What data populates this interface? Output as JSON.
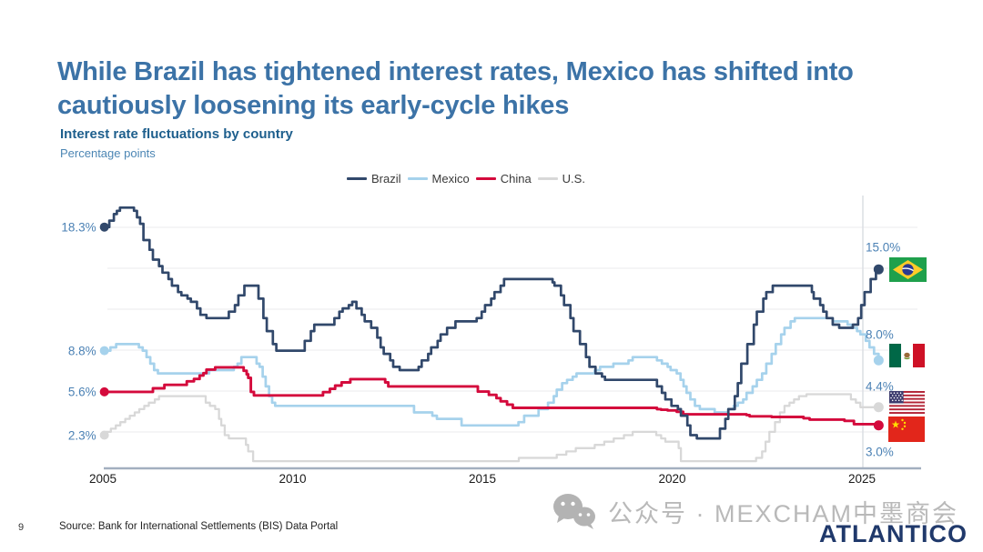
{
  "slide": {
    "title_line1": "While Brazil has tightened interest rates, Mexico has shifted into",
    "title_line2": "cautiously loosening its early-cycle hikes",
    "page_number": "9",
    "source": "Source: Bank for International Settlements (BIS) Data Portal",
    "watermark_text": "公众号 · MEXCHAM中墨商会",
    "logo_text": "ATLANTICO"
  },
  "chart": {
    "title": "Interest rate fluctuations by country",
    "units": "Percentage points"
  },
  "chart_data": {
    "type": "line",
    "title": "Interest rate fluctuations by country",
    "ylabel": "Percentage points",
    "x_tick_labels": [
      "2005",
      "2010",
      "2015",
      "2020",
      "2025"
    ],
    "x_ticks": [
      2005,
      2010,
      2015,
      2020,
      2025
    ],
    "x_range": [
      2005.0,
      2025.44
    ],
    "ylim": [
      0,
      20
    ],
    "grid": "horizontal unlabeled gridlines, vertical highlight line at 2025",
    "legend_position": "top-center",
    "value_label_color": "#4C82B5",
    "series": [
      {
        "name": "Brazil",
        "color": "#31486B",
        "start_label": "18.3%",
        "end_label": "15.0%",
        "flag": "brazil-flag",
        "points": [
          [
            2005.04,
            18.25
          ],
          [
            2005.17,
            18.75
          ],
          [
            2005.29,
            19.25
          ],
          [
            2005.37,
            19.5
          ],
          [
            2005.45,
            19.75
          ],
          [
            2005.82,
            19.5
          ],
          [
            2005.9,
            19.0
          ],
          [
            2005.98,
            18.5
          ],
          [
            2006.07,
            17.25
          ],
          [
            2006.23,
            16.5
          ],
          [
            2006.32,
            15.75
          ],
          [
            2006.48,
            15.25
          ],
          [
            2006.57,
            14.75
          ],
          [
            2006.73,
            14.25
          ],
          [
            2006.82,
            13.75
          ],
          [
            2006.98,
            13.25
          ],
          [
            2007.07,
            13.0
          ],
          [
            2007.23,
            12.75
          ],
          [
            2007.32,
            12.5
          ],
          [
            2007.48,
            12.0
          ],
          [
            2007.57,
            11.5
          ],
          [
            2007.73,
            11.25
          ],
          [
            2008.32,
            11.75
          ],
          [
            2008.48,
            12.25
          ],
          [
            2008.57,
            13.0
          ],
          [
            2008.73,
            13.75
          ],
          [
            2009.1,
            12.75
          ],
          [
            2009.23,
            11.25
          ],
          [
            2009.32,
            10.25
          ],
          [
            2009.48,
            9.25
          ],
          [
            2009.57,
            8.75
          ],
          [
            2010.32,
            9.5
          ],
          [
            2010.48,
            10.25
          ],
          [
            2010.57,
            10.75
          ],
          [
            2011.1,
            11.25
          ],
          [
            2011.23,
            11.75
          ],
          [
            2011.32,
            12.0
          ],
          [
            2011.48,
            12.25
          ],
          [
            2011.57,
            12.5
          ],
          [
            2011.68,
            12.0
          ],
          [
            2011.82,
            11.5
          ],
          [
            2011.9,
            11.0
          ],
          [
            2012.07,
            10.5
          ],
          [
            2012.23,
            9.75
          ],
          [
            2012.32,
            9.0
          ],
          [
            2012.4,
            8.5
          ],
          [
            2012.57,
            8.0
          ],
          [
            2012.65,
            7.5
          ],
          [
            2012.82,
            7.25
          ],
          [
            2013.32,
            7.5
          ],
          [
            2013.4,
            8.0
          ],
          [
            2013.57,
            8.5
          ],
          [
            2013.65,
            9.0
          ],
          [
            2013.82,
            9.5
          ],
          [
            2013.9,
            10.0
          ],
          [
            2014.07,
            10.5
          ],
          [
            2014.29,
            11.0
          ],
          [
            2014.85,
            11.25
          ],
          [
            2014.98,
            11.75
          ],
          [
            2015.07,
            12.25
          ],
          [
            2015.23,
            12.75
          ],
          [
            2015.32,
            13.25
          ],
          [
            2015.48,
            13.75
          ],
          [
            2015.57,
            14.25
          ],
          [
            2016.85,
            14.0
          ],
          [
            2016.9,
            13.75
          ],
          [
            2017.07,
            13.0
          ],
          [
            2017.15,
            12.25
          ],
          [
            2017.32,
            11.25
          ],
          [
            2017.4,
            10.25
          ],
          [
            2017.57,
            9.25
          ],
          [
            2017.73,
            8.25
          ],
          [
            2017.82,
            7.5
          ],
          [
            2017.98,
            7.0
          ],
          [
            2018.15,
            6.75
          ],
          [
            2018.23,
            6.5
          ],
          [
            2019.6,
            6.0
          ],
          [
            2019.73,
            5.5
          ],
          [
            2019.82,
            5.0
          ],
          [
            2019.98,
            4.5
          ],
          [
            2020.15,
            4.25
          ],
          [
            2020.23,
            3.75
          ],
          [
            2020.4,
            3.0
          ],
          [
            2020.48,
            2.25
          ],
          [
            2020.65,
            2.0
          ],
          [
            2021.26,
            2.75
          ],
          [
            2021.4,
            3.5
          ],
          [
            2021.48,
            4.25
          ],
          [
            2021.65,
            5.25
          ],
          [
            2021.73,
            6.25
          ],
          [
            2021.82,
            7.75
          ],
          [
            2021.98,
            9.25
          ],
          [
            2022.15,
            10.75
          ],
          [
            2022.23,
            11.75
          ],
          [
            2022.4,
            12.75
          ],
          [
            2022.48,
            13.25
          ],
          [
            2022.65,
            13.75
          ],
          [
            2023.68,
            13.25
          ],
          [
            2023.73,
            12.75
          ],
          [
            2023.9,
            12.25
          ],
          [
            2023.98,
            11.75
          ],
          [
            2024.07,
            11.25
          ],
          [
            2024.23,
            10.75
          ],
          [
            2024.4,
            10.5
          ],
          [
            2024.76,
            10.75
          ],
          [
            2024.9,
            11.25
          ],
          [
            2024.98,
            12.25
          ],
          [
            2025.07,
            13.25
          ],
          [
            2025.23,
            14.25
          ],
          [
            2025.37,
            14.75
          ],
          [
            2025.44,
            15.0
          ]
        ]
      },
      {
        "name": "Mexico",
        "color": "#A6D2EC",
        "start_label": "8.8%",
        "end_label": "8.0%",
        "flag": "mexico-flag",
        "points": [
          [
            2005.04,
            8.75
          ],
          [
            2005.2,
            9.0
          ],
          [
            2005.35,
            9.25
          ],
          [
            2005.95,
            9.0
          ],
          [
            2006.05,
            8.75
          ],
          [
            2006.15,
            8.25
          ],
          [
            2006.25,
            7.75
          ],
          [
            2006.35,
            7.25
          ],
          [
            2006.45,
            7.0
          ],
          [
            2007.8,
            7.25
          ],
          [
            2008.45,
            7.5
          ],
          [
            2008.55,
            7.75
          ],
          [
            2008.65,
            8.25
          ],
          [
            2009.05,
            7.75
          ],
          [
            2009.13,
            7.5
          ],
          [
            2009.21,
            6.75
          ],
          [
            2009.29,
            6.0
          ],
          [
            2009.38,
            5.25
          ],
          [
            2009.46,
            4.75
          ],
          [
            2009.54,
            4.5
          ],
          [
            2013.2,
            4.0
          ],
          [
            2013.68,
            3.75
          ],
          [
            2013.8,
            3.5
          ],
          [
            2014.45,
            3.0
          ],
          [
            2015.95,
            3.25
          ],
          [
            2016.1,
            3.75
          ],
          [
            2016.48,
            4.25
          ],
          [
            2016.73,
            4.75
          ],
          [
            2016.88,
            5.25
          ],
          [
            2016.96,
            5.75
          ],
          [
            2017.1,
            6.25
          ],
          [
            2017.23,
            6.5
          ],
          [
            2017.38,
            6.75
          ],
          [
            2017.48,
            7.0
          ],
          [
            2017.96,
            7.25
          ],
          [
            2018.1,
            7.5
          ],
          [
            2018.45,
            7.75
          ],
          [
            2018.85,
            8.0
          ],
          [
            2018.96,
            8.25
          ],
          [
            2019.6,
            8.0
          ],
          [
            2019.73,
            7.75
          ],
          [
            2019.88,
            7.5
          ],
          [
            2019.96,
            7.25
          ],
          [
            2020.12,
            7.0
          ],
          [
            2020.22,
            6.5
          ],
          [
            2020.3,
            6.0
          ],
          [
            2020.38,
            5.5
          ],
          [
            2020.48,
            5.0
          ],
          [
            2020.6,
            4.5
          ],
          [
            2020.73,
            4.25
          ],
          [
            2021.12,
            4.0
          ],
          [
            2021.48,
            4.25
          ],
          [
            2021.62,
            4.5
          ],
          [
            2021.73,
            4.75
          ],
          [
            2021.87,
            5.0
          ],
          [
            2021.96,
            5.5
          ],
          [
            2022.12,
            6.0
          ],
          [
            2022.23,
            6.5
          ],
          [
            2022.37,
            7.0
          ],
          [
            2022.48,
            7.75
          ],
          [
            2022.62,
            8.5
          ],
          [
            2022.73,
            9.25
          ],
          [
            2022.87,
            10.0
          ],
          [
            2022.96,
            10.5
          ],
          [
            2023.12,
            11.0
          ],
          [
            2023.23,
            11.25
          ],
          [
            2024.23,
            11.0
          ],
          [
            2024.62,
            10.75
          ],
          [
            2024.73,
            10.5
          ],
          [
            2024.87,
            10.25
          ],
          [
            2024.96,
            10.0
          ],
          [
            2025.1,
            9.5
          ],
          [
            2025.2,
            9.0
          ],
          [
            2025.32,
            8.5
          ],
          [
            2025.44,
            8.0
          ]
        ]
      },
      {
        "name": "China",
        "color": "#D40A3C",
        "start_label": "5.6%",
        "end_label": "3.0%",
        "flag": "china-flag",
        "points": [
          [
            2005.04,
            5.58
          ],
          [
            2006.32,
            5.85
          ],
          [
            2006.62,
            6.12
          ],
          [
            2007.21,
            6.39
          ],
          [
            2007.4,
            6.57
          ],
          [
            2007.55,
            6.84
          ],
          [
            2007.65,
            7.02
          ],
          [
            2007.73,
            7.29
          ],
          [
            2007.96,
            7.47
          ],
          [
            2008.71,
            7.2
          ],
          [
            2008.79,
            6.93
          ],
          [
            2008.83,
            6.66
          ],
          [
            2008.9,
            5.58
          ],
          [
            2008.98,
            5.31
          ],
          [
            2010.8,
            5.56
          ],
          [
            2010.98,
            5.81
          ],
          [
            2011.12,
            6.06
          ],
          [
            2011.29,
            6.31
          ],
          [
            2011.52,
            6.56
          ],
          [
            2012.44,
            6.31
          ],
          [
            2012.52,
            6.0
          ],
          [
            2014.88,
            5.6
          ],
          [
            2015.17,
            5.35
          ],
          [
            2015.37,
            5.1
          ],
          [
            2015.48,
            4.85
          ],
          [
            2015.65,
            4.6
          ],
          [
            2015.8,
            4.35
          ],
          [
            2019.6,
            4.25
          ],
          [
            2019.71,
            4.2
          ],
          [
            2019.88,
            4.15
          ],
          [
            2020.12,
            4.05
          ],
          [
            2020.29,
            3.85
          ],
          [
            2021.96,
            3.8
          ],
          [
            2022.04,
            3.7
          ],
          [
            2022.62,
            3.65
          ],
          [
            2023.46,
            3.55
          ],
          [
            2023.62,
            3.45
          ],
          [
            2024.54,
            3.35
          ],
          [
            2024.79,
            3.1
          ],
          [
            2025.37,
            3.0
          ]
        ]
      },
      {
        "name": "U.S.",
        "color": "#D8D8D8",
        "start_label": "2.3%",
        "end_label": "4.4%",
        "flag": "us-flag",
        "points": [
          [
            2005.04,
            2.25
          ],
          [
            2005.09,
            2.5
          ],
          [
            2005.21,
            2.75
          ],
          [
            2005.34,
            3.0
          ],
          [
            2005.46,
            3.25
          ],
          [
            2005.59,
            3.5
          ],
          [
            2005.71,
            3.75
          ],
          [
            2005.84,
            4.0
          ],
          [
            2005.96,
            4.25
          ],
          [
            2006.09,
            4.5
          ],
          [
            2006.21,
            4.75
          ],
          [
            2006.37,
            5.0
          ],
          [
            2006.48,
            5.25
          ],
          [
            2007.71,
            4.75
          ],
          [
            2007.82,
            4.5
          ],
          [
            2007.96,
            4.25
          ],
          [
            2008.06,
            3.5
          ],
          [
            2008.12,
            3.0
          ],
          [
            2008.21,
            2.25
          ],
          [
            2008.32,
            2.0
          ],
          [
            2008.77,
            1.5
          ],
          [
            2008.83,
            1.0
          ],
          [
            2008.96,
            0.25
          ],
          [
            2015.96,
            0.5
          ],
          [
            2016.96,
            0.75
          ],
          [
            2017.21,
            1.0
          ],
          [
            2017.46,
            1.25
          ],
          [
            2017.96,
            1.5
          ],
          [
            2018.21,
            1.75
          ],
          [
            2018.46,
            2.0
          ],
          [
            2018.73,
            2.25
          ],
          [
            2018.96,
            2.5
          ],
          [
            2019.58,
            2.25
          ],
          [
            2019.71,
            2.0
          ],
          [
            2019.82,
            1.75
          ],
          [
            2020.17,
            1.25
          ],
          [
            2020.23,
            0.25
          ],
          [
            2022.21,
            0.5
          ],
          [
            2022.37,
            1.0
          ],
          [
            2022.46,
            1.75
          ],
          [
            2022.56,
            2.5
          ],
          [
            2022.71,
            3.25
          ],
          [
            2022.84,
            4.0
          ],
          [
            2022.96,
            4.5
          ],
          [
            2023.09,
            4.75
          ],
          [
            2023.21,
            5.0
          ],
          [
            2023.34,
            5.25
          ],
          [
            2023.54,
            5.4
          ],
          [
            2024.71,
            5.0
          ],
          [
            2024.84,
            4.75
          ],
          [
            2024.96,
            4.4
          ]
        ]
      }
    ]
  }
}
